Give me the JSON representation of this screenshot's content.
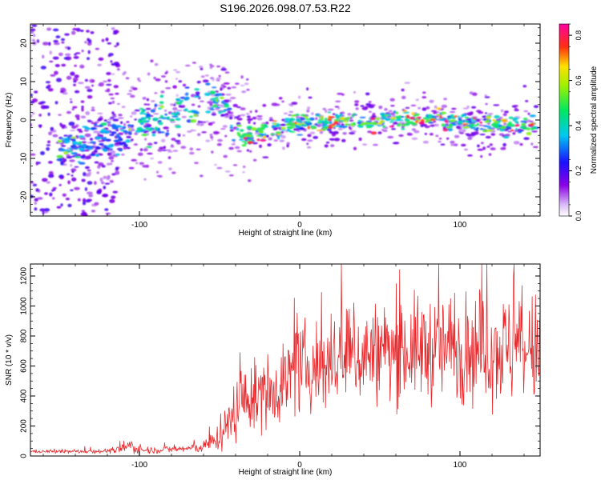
{
  "page_title": "S196.2026.098.07.53.R22",
  "colors": {
    "snr_line": "#e8282b",
    "axis": "#000000",
    "background": "#ffffff"
  },
  "chart_data": [
    {
      "type": "heatmap",
      "title": "S196.2026.098.07.53.R22",
      "xlabel": "Height of straight line (km)",
      "ylabel": "Frequency (Hz)",
      "xlim": [
        -168,
        150
      ],
      "ylim": [
        -25,
        25
      ],
      "xticks": [
        -100,
        0,
        100
      ],
      "yticks": [
        -20,
        -10,
        0,
        10,
        20
      ],
      "colorbar": {
        "label": "Normalized spectral amplitude",
        "range": [
          0.0,
          0.85
        ],
        "ticks": [
          0.0,
          0.2,
          0.4,
          0.6,
          0.8
        ],
        "colormap": "rainbow (white-violet-blue-cyan-green-yellow-red-magenta)"
      },
      "ridge": {
        "description": "main frequency trace (approximate centre line)",
        "x": [
          -145,
          -130,
          -115,
          -100,
          -85,
          -70,
          -58,
          -50,
          -42,
          -35,
          -25,
          -10,
          0,
          20,
          40,
          60,
          80,
          100,
          120,
          148
        ],
        "freq": [
          -7,
          -6,
          -4,
          -2,
          1,
          3,
          5,
          6,
          0,
          -5,
          -3,
          -2,
          -1,
          -0.5,
          -0.5,
          0,
          0,
          -0.5,
          -1,
          -1.5
        ]
      }
    },
    {
      "type": "line",
      "xlabel": "Height of straight line (km)",
      "ylabel": "SNR (10 * v/v)",
      "xlim": [
        -168,
        150
      ],
      "ylim": [
        0,
        1280
      ],
      "xticks": [
        -100,
        0,
        100
      ],
      "yticks": [
        0,
        200,
        400,
        600,
        800,
        1000,
        1200
      ],
      "series": [
        {
          "name": "SNR",
          "envelope_x": [
            -168,
            -140,
            -115,
            -105,
            -100,
            -90,
            -70,
            -60,
            -55,
            -50,
            -45,
            -40,
            -35,
            -30,
            -20,
            -10,
            0,
            10,
            20,
            40,
            60,
            80,
            100,
            120,
            150
          ],
          "envelope_mean": [
            30,
            30,
            35,
            70,
            40,
            40,
            50,
            60,
            90,
            130,
            200,
            320,
            380,
            380,
            420,
            500,
            580,
            600,
            620,
            680,
            700,
            720,
            720,
            720,
            700
          ],
          "envelope_spread": [
            10,
            12,
            15,
            50,
            25,
            20,
            25,
            35,
            60,
            90,
            130,
            200,
            210,
            200,
            220,
            250,
            260,
            270,
            280,
            300,
            300,
            320,
            330,
            340,
            340
          ]
        }
      ]
    }
  ]
}
